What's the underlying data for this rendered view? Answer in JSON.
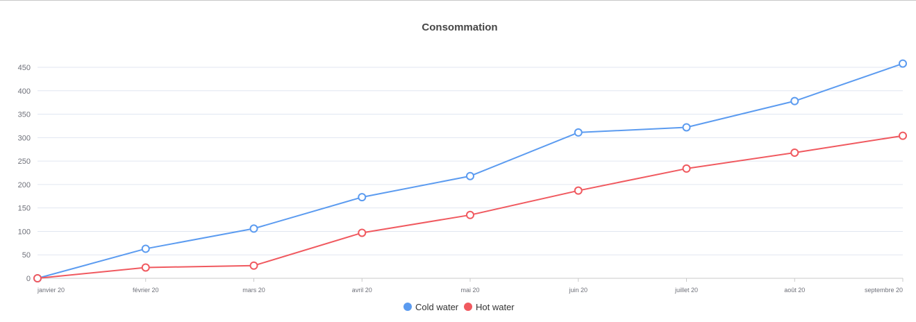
{
  "chart_data": {
    "type": "line",
    "title": "Consommation",
    "xlabel": "",
    "ylabel": "",
    "ylim": [
      0,
      450
    ],
    "yticks": [
      0,
      50,
      100,
      150,
      200,
      250,
      300,
      350,
      400,
      450
    ],
    "categories": [
      "janvier 20",
      "février 20",
      "mars 20",
      "avril 20",
      "mai 20",
      "juin 20",
      "juillet 20",
      "août 20",
      "septembre 20"
    ],
    "series": [
      {
        "name": "Cold water",
        "color": "#5b9bf0",
        "values": [
          0,
          63,
          106,
          173,
          218,
          311,
          322,
          378,
          458
        ]
      },
      {
        "name": "Hot water",
        "color": "#f0595f",
        "values": [
          0,
          23,
          27,
          97,
          135,
          187,
          234,
          268,
          304
        ]
      }
    ],
    "legend_position": "bottom-center",
    "grid": true
  }
}
